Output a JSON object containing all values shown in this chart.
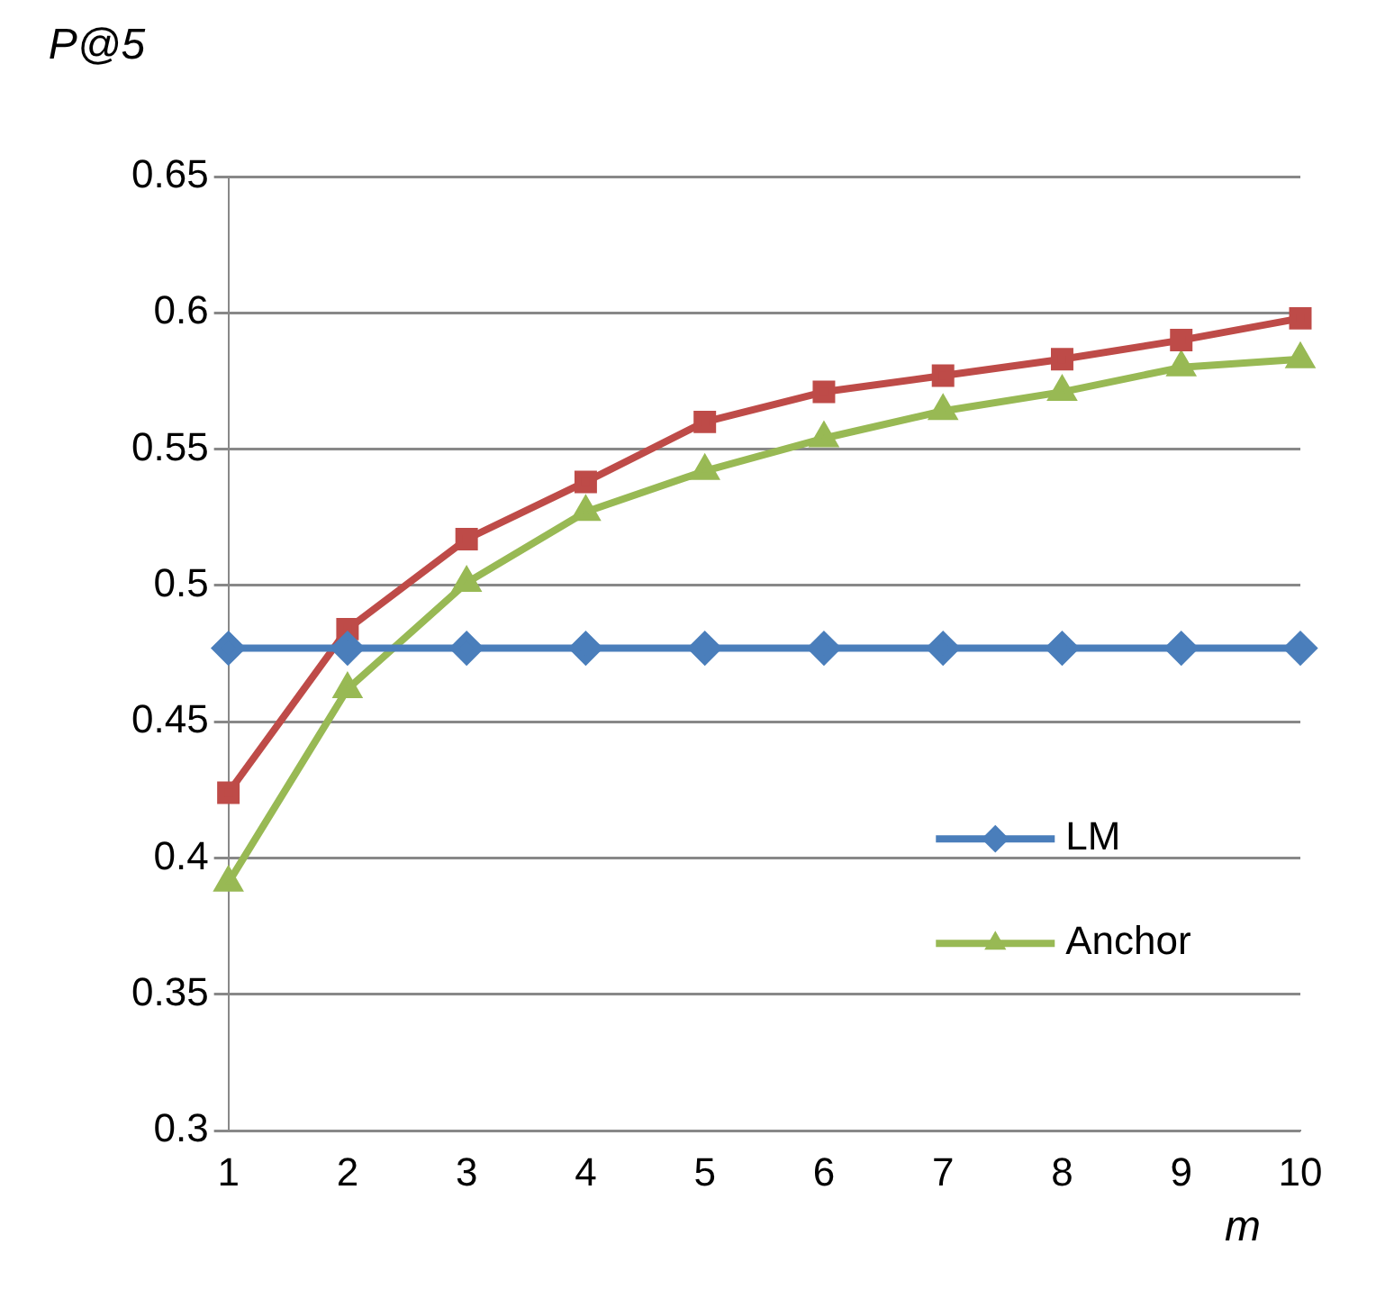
{
  "chart_data": {
    "type": "line",
    "ylabel": "P@5",
    "xlabel": "m",
    "categories": [
      "1",
      "2",
      "3",
      "4",
      "5",
      "6",
      "7",
      "8",
      "9",
      "10"
    ],
    "series": [
      {
        "name": "LM",
        "color": "#4a7ebb",
        "marker": "diamond",
        "values": [
          0.477,
          0.477,
          0.477,
          0.477,
          0.477,
          0.477,
          0.477,
          0.477,
          0.477,
          0.477
        ]
      },
      {
        "color": "#be4b48",
        "marker": "square",
        "values": [
          0.424,
          0.484,
          0.517,
          0.538,
          0.56,
          0.571,
          0.577,
          0.583,
          0.59,
          0.598
        ]
      },
      {
        "name": "Anchor",
        "color": "#98b954",
        "marker": "triangle",
        "values": [
          0.391,
          0.462,
          0.501,
          0.527,
          0.542,
          0.554,
          0.564,
          0.571,
          0.58,
          0.583
        ]
      }
    ],
    "ylim": [
      0.3,
      0.65
    ],
    "yticks": [
      0.3,
      0.35,
      0.4,
      0.45,
      0.5,
      0.55,
      0.6,
      0.65
    ],
    "grid": "y",
    "legend": "bottom right",
    "line_style": "solid"
  }
}
